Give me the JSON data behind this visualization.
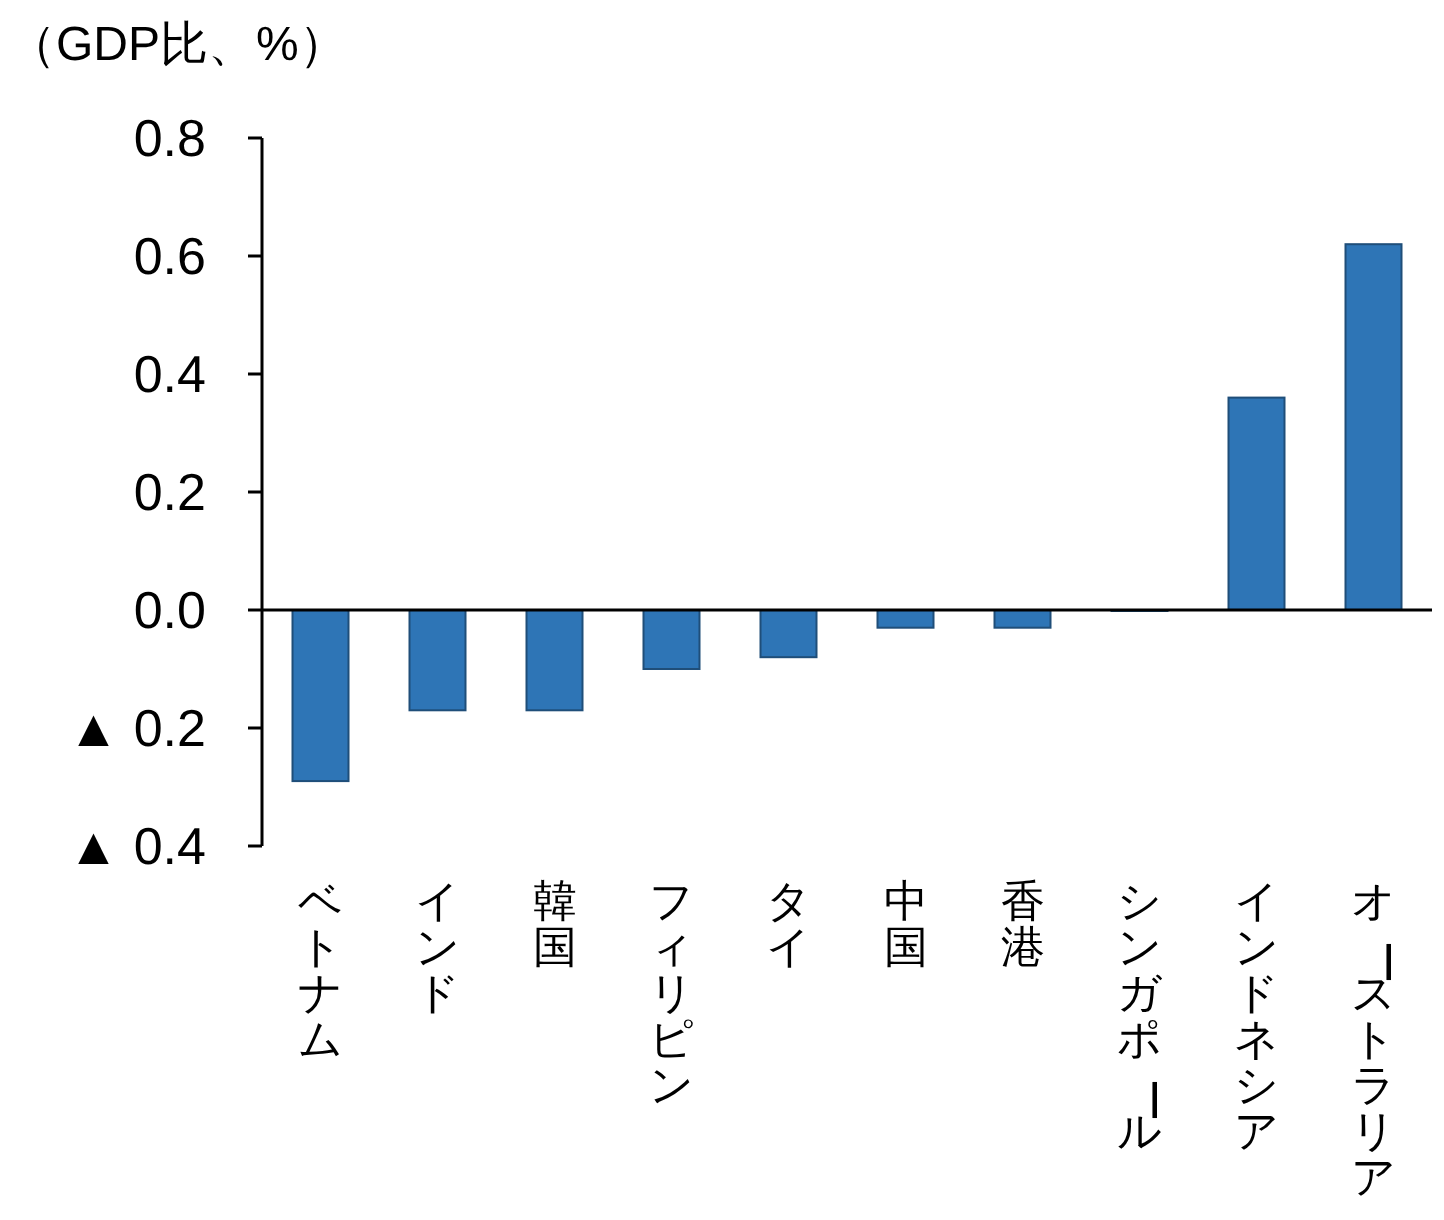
{
  "chart_data": {
    "type": "bar",
    "ylabel": "（GDP比、%）",
    "categories": [
      "ベトナム",
      "インド",
      "韓国",
      "フィリピン",
      "タイ",
      "中国",
      "香港",
      "シンガポール",
      "インドネシア",
      "オーストラリア"
    ],
    "values": [
      -0.29,
      -0.17,
      -0.17,
      -0.1,
      -0.08,
      -0.03,
      -0.03,
      0.0,
      0.36,
      0.62
    ],
    "color": "#2e75b6",
    "ylim": [
      -0.4,
      0.8
    ],
    "yticks": [
      {
        "value": -0.4,
        "label": "▲ 0.4"
      },
      {
        "value": -0.2,
        "label": "▲ 0.2"
      },
      {
        "value": 0,
        "label": "0.0"
      },
      {
        "value": 0.2,
        "label": "0.2"
      },
      {
        "value": 0.4,
        "label": "0.4"
      },
      {
        "value": 0.6,
        "label": "0.6"
      },
      {
        "value": 0.8,
        "label": "0.8"
      }
    ]
  }
}
